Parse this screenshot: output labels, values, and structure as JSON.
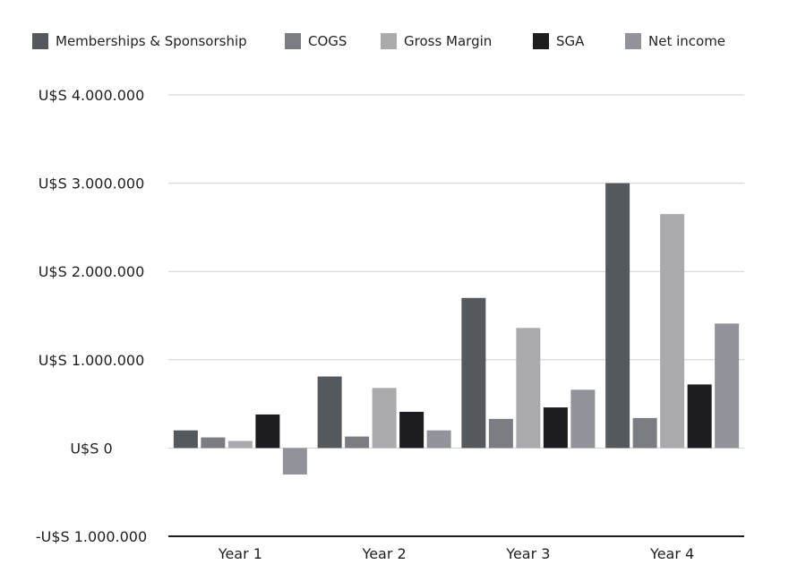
{
  "chart_data": {
    "type": "bar",
    "categories": [
      "Year 1",
      "Year 2",
      "Year 3",
      "Year 4"
    ],
    "series": [
      {
        "name": "Memberships & Sponsorship",
        "color": "#54595e",
        "values": [
          200000,
          810000,
          1700000,
          3000000
        ]
      },
      {
        "name": "COGS",
        "color": "#7a7d82",
        "values": [
          120000,
          130000,
          330000,
          340000
        ]
      },
      {
        "name": "Gross Margin",
        "color": "#aaaaac",
        "values": [
          80000,
          680000,
          1360000,
          2650000
        ]
      },
      {
        "name": "SGA",
        "color": "#1d1d1f",
        "values": [
          380000,
          410000,
          460000,
          720000
        ]
      },
      {
        "name": "Net income",
        "color": "#92939a",
        "values": [
          -300000,
          200000,
          660000,
          1410000
        ]
      }
    ],
    "ylim": [
      -1000000,
      4000000
    ],
    "yticks": [
      4000000,
      3000000,
      2000000,
      1000000,
      0,
      -1000000
    ],
    "ytick_labels": [
      "U$S 4.000.000",
      "U$S 3.000.000",
      "U$S 2.000.000",
      "U$S 1.000.000",
      "U$S 0",
      "-U$S 1.000.000"
    ],
    "grid": true,
    "legend_position": "top"
  }
}
